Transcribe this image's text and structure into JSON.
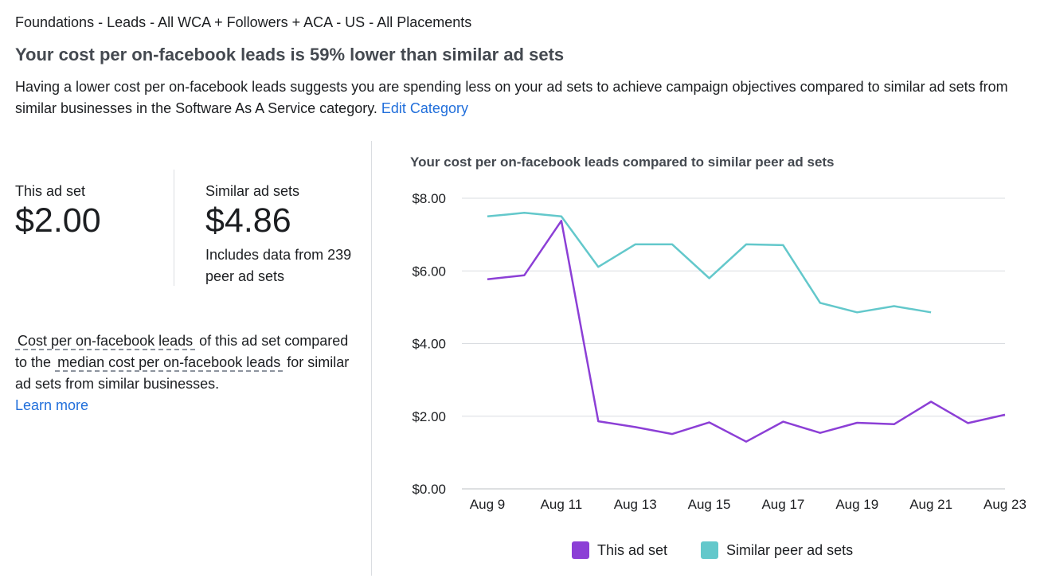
{
  "header": {
    "breadcrumb": "Foundations - Leads - All WCA + Followers + ACA - US - All Placements",
    "headline": "Your cost per on-facebook leads is 59% lower than similar ad sets",
    "description": "Having a lower cost per on-facebook leads suggests you are spending less on your ad sets to achieve campaign objectives compared to similar ad sets from similar businesses in the Software As A Service category.",
    "edit_category_link": "Edit Category"
  },
  "metrics": {
    "this": {
      "label": "This ad set",
      "value": "$2.00"
    },
    "similar": {
      "label": "Similar ad sets",
      "value": "$4.86",
      "note": "Includes data from 239 peer ad sets"
    }
  },
  "explanation": {
    "term1": "Cost per on-facebook leads",
    "text1": "of this ad set compared to the",
    "term2": "median cost per on-facebook leads",
    "text2": "for similar ad sets from similar businesses.",
    "learn_more": "Learn more"
  },
  "colors": {
    "this_series": "#8c3fd6",
    "similar_series": "#63c8cb",
    "link": "#216fdb"
  },
  "chart_data": {
    "type": "line",
    "title": "Your cost per on-facebook leads compared to similar peer ad sets",
    "x": [
      "Aug 9",
      "Aug 10",
      "Aug 11",
      "Aug 12",
      "Aug 13",
      "Aug 14",
      "Aug 15",
      "Aug 16",
      "Aug 17",
      "Aug 18",
      "Aug 19",
      "Aug 20",
      "Aug 21",
      "Aug 22",
      "Aug 23"
    ],
    "x_tick_labels": [
      "Aug 9",
      "Aug 11",
      "Aug 13",
      "Aug 15",
      "Aug 17",
      "Aug 19",
      "Aug 21",
      "Aug 23"
    ],
    "y_tick_labels": [
      "$0.00",
      "$2.00",
      "$4.00",
      "$6.00",
      "$8.00"
    ],
    "ylim": [
      0,
      8
    ],
    "grid": true,
    "legend_position": "bottom",
    "series": [
      {
        "name": "This ad set",
        "values": [
          5.77,
          5.88,
          7.38,
          1.86,
          1.7,
          1.51,
          1.83,
          1.3,
          1.85,
          1.54,
          1.82,
          1.78,
          2.4,
          1.81,
          2.04
        ]
      },
      {
        "name": "Similar peer ad sets",
        "values": [
          7.5,
          7.6,
          7.5,
          6.11,
          6.73,
          6.73,
          5.8,
          6.73,
          6.71,
          5.12,
          4.86,
          5.03,
          4.86,
          null,
          null
        ]
      }
    ]
  }
}
